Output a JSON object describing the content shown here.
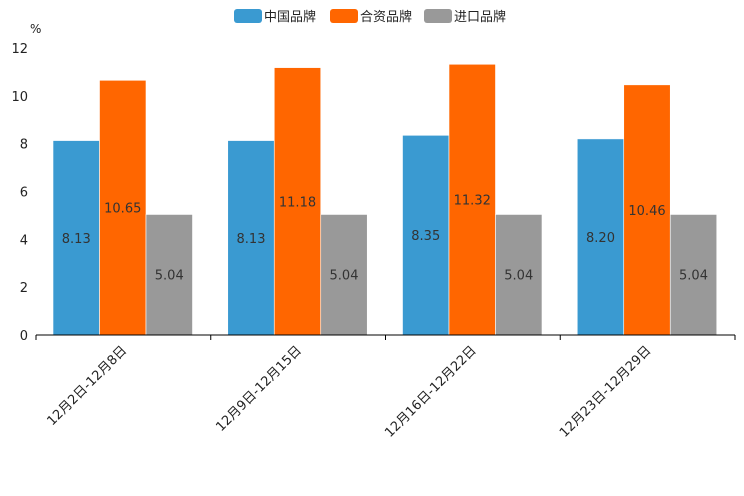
{
  "chart_data": {
    "type": "bar",
    "title": "",
    "unit": "%",
    "xlabel": "",
    "ylabel": "",
    "ylim": [
      0,
      12
    ],
    "yticks": [
      0,
      2,
      4,
      6,
      8,
      10,
      12
    ],
    "grid": false,
    "legend_position": "top-center",
    "categories": [
      "12月2日-12月8日",
      "12月9日-12月15日",
      "12月16日-12月22日",
      "12月23日-12月29日"
    ],
    "series": [
      {
        "name": "中国品牌",
        "color": "#3a9ad1",
        "values": [
          8.13,
          8.13,
          8.35,
          8.2
        ],
        "labels": [
          "8.13",
          "8.13",
          "8.35",
          "8.20"
        ]
      },
      {
        "name": "合资品牌",
        "color": "#ff6600",
        "values": [
          10.65,
          11.18,
          11.32,
          10.46
        ],
        "labels": [
          "10.65",
          "11.18",
          "11.32",
          "10.46"
        ]
      },
      {
        "name": "进口品牌",
        "color": "#999999",
        "values": [
          5.04,
          5.04,
          5.04,
          5.04
        ],
        "labels": [
          "5.04",
          "5.04",
          "5.04",
          "5.04"
        ]
      }
    ]
  }
}
